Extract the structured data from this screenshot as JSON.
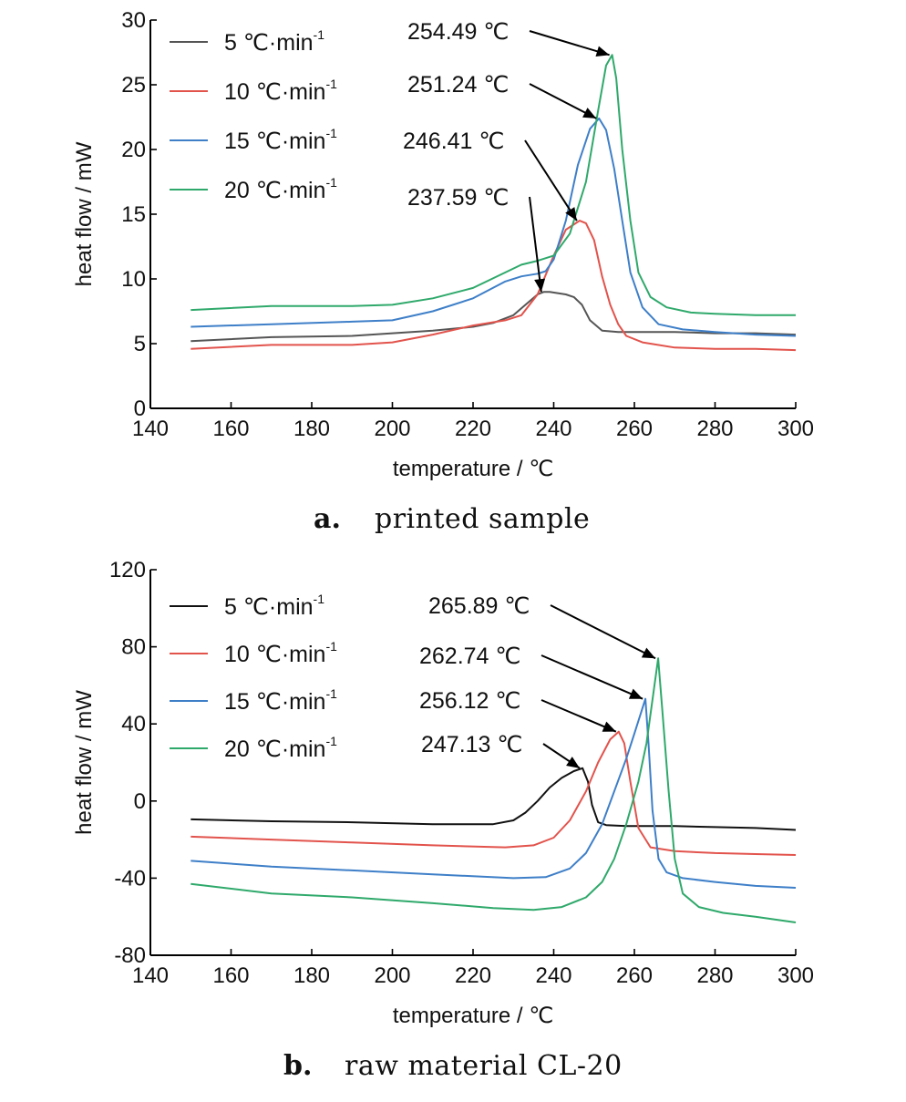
{
  "chart_data": [
    {
      "type": "line",
      "caption": {
        "letter": "a.",
        "text": "printed sample"
      },
      "xlabel": "temperature / ℃",
      "ylabel": "heat flow / mW",
      "xlim": [
        140,
        300
      ],
      "ylim": [
        0,
        30
      ],
      "xticks": [
        "140",
        "160",
        "180",
        "200",
        "220",
        "240",
        "260",
        "280",
        "300"
      ],
      "yticks": [
        "0",
        "5",
        "10",
        "15",
        "20",
        "25",
        "30"
      ],
      "legend_position": "top-left",
      "series": [
        {
          "name": "5 ℃·min",
          "superscript": "-1",
          "color": "#555555",
          "x": [
            150,
            170,
            190,
            200,
            210,
            220,
            225,
            230,
            233,
            236,
            237.59,
            239,
            241,
            243,
            245,
            247,
            249,
            252,
            256,
            260,
            270,
            280,
            290,
            300
          ],
          "y": [
            5.2,
            5.5,
            5.6,
            5.8,
            6.0,
            6.3,
            6.6,
            7.2,
            8.0,
            8.8,
            9.0,
            9.0,
            8.9,
            8.8,
            8.6,
            8.0,
            6.8,
            6.0,
            5.9,
            5.9,
            5.9,
            5.8,
            5.8,
            5.7
          ]
        },
        {
          "name": "10 ℃·min",
          "superscript": "-1",
          "color": "#e2534c",
          "x": [
            150,
            170,
            190,
            200,
            210,
            220,
            228,
            232,
            236,
            240,
            243,
            246.41,
            248,
            250,
            252,
            254,
            256,
            258,
            262,
            270,
            280,
            290,
            300
          ],
          "y": [
            4.6,
            4.9,
            4.9,
            5.1,
            5.7,
            6.4,
            6.8,
            7.2,
            8.8,
            11.8,
            13.8,
            14.5,
            14.3,
            13.0,
            10.2,
            8.0,
            6.5,
            5.6,
            5.1,
            4.7,
            4.6,
            4.6,
            4.5
          ]
        },
        {
          "name": "15 ℃·min",
          "superscript": "-1",
          "color": "#3e7fc8",
          "x": [
            150,
            170,
            190,
            200,
            210,
            220,
            228,
            232,
            236,
            238,
            240,
            243,
            246,
            249,
            251.24,
            253,
            255,
            257,
            259,
            262,
            266,
            272,
            280,
            290,
            300
          ],
          "y": [
            6.3,
            6.5,
            6.7,
            6.8,
            7.5,
            8.5,
            9.8,
            10.2,
            10.4,
            10.6,
            11.5,
            14.5,
            18.8,
            21.6,
            22.4,
            21.5,
            18.5,
            14.5,
            10.5,
            7.8,
            6.5,
            6.1,
            5.9,
            5.7,
            5.6
          ]
        },
        {
          "name": "20 ℃·min",
          "superscript": "-1",
          "color": "#2fa96b",
          "x": [
            150,
            170,
            190,
            200,
            210,
            220,
            228,
            232,
            236,
            240,
            244,
            248,
            251,
            253,
            254.49,
            255.5,
            257,
            259,
            261,
            264,
            268,
            274,
            280,
            290,
            300
          ],
          "y": [
            7.6,
            7.9,
            7.9,
            8.0,
            8.5,
            9.3,
            10.5,
            11.1,
            11.4,
            11.8,
            13.5,
            17.5,
            23.0,
            26.5,
            27.3,
            25.5,
            20.0,
            14.5,
            10.5,
            8.6,
            7.8,
            7.4,
            7.3,
            7.2,
            7.2
          ]
        }
      ],
      "annotations": [
        {
          "text": "254.49 ℃",
          "x": 254.49,
          "y": 27.3
        },
        {
          "text": "251.24 ℃",
          "x": 251.24,
          "y": 22.4
        },
        {
          "text": "246.41 ℃",
          "x": 246.41,
          "y": 14.5
        },
        {
          "text": "237.59 ℃",
          "x": 237.59,
          "y": 9.0
        }
      ]
    },
    {
      "type": "line",
      "caption": {
        "letter": "b.",
        "text": "raw material CL-20"
      },
      "xlabel": "temperature / ℃",
      "ylabel": "heat flow / mW",
      "xlim": [
        140,
        300
      ],
      "ylim": [
        -80,
        120
      ],
      "xticks": [
        "140",
        "160",
        "180",
        "200",
        "220",
        "240",
        "260",
        "280",
        "300"
      ],
      "yticks": [
        "-80",
        "-40",
        "0",
        "40",
        "80",
        "120"
      ],
      "legend_position": "top-left",
      "series": [
        {
          "name": "5 ℃·min",
          "superscript": "-1",
          "color": "#111111",
          "x": [
            150,
            170,
            190,
            210,
            225,
            230,
            233,
            236,
            239,
            242,
            245,
            247.13,
            248.5,
            249.5,
            251,
            253,
            258,
            270,
            280,
            290,
            300
          ],
          "y": [
            -9.5,
            -10.5,
            -11,
            -12,
            -12,
            -10,
            -6,
            0,
            7,
            12,
            15.5,
            17,
            10,
            -2,
            -11,
            -12.5,
            -13,
            -13,
            -13.5,
            -14,
            -15
          ]
        },
        {
          "name": "10 ℃·min",
          "superscript": "-1",
          "color": "#e2534c",
          "x": [
            150,
            170,
            190,
            210,
            228,
            235,
            240,
            244,
            248,
            251,
            254,
            256.12,
            257.5,
            259,
            261,
            264,
            270,
            280,
            290,
            300
          ],
          "y": [
            -18.5,
            -20,
            -21.5,
            -23,
            -24,
            -23,
            -19,
            -10,
            5,
            20,
            32,
            36,
            30,
            10,
            -14,
            -24,
            -26,
            -27,
            -27.5,
            -28
          ]
        },
        {
          "name": "15 ℃·min",
          "superscript": "-1",
          "color": "#3e7fc8",
          "x": [
            150,
            170,
            190,
            210,
            230,
            238,
            244,
            248,
            252,
            255,
            258,
            260,
            262.74,
            263.5,
            264.5,
            266,
            268,
            272,
            280,
            290,
            300
          ],
          "y": [
            -31,
            -34,
            -36,
            -38,
            -40,
            -39.5,
            -35,
            -27,
            -12,
            5,
            22,
            35,
            53,
            30,
            -5,
            -30,
            -37,
            -40,
            -42,
            -44,
            -45
          ]
        },
        {
          "name": "20 ℃·min",
          "superscript": "-1",
          "color": "#2fa96b",
          "x": [
            150,
            170,
            190,
            210,
            225,
            235,
            242,
            248,
            252,
            255,
            258,
            261,
            263,
            265.89,
            267,
            268.5,
            270,
            272,
            276,
            282,
            290,
            300
          ],
          "y": [
            -43,
            -48,
            -50,
            -53,
            -55.5,
            -56.5,
            -55,
            -50,
            -42,
            -30,
            -12,
            10,
            30,
            74,
            45,
            5,
            -30,
            -48,
            -55,
            -58,
            -60,
            -63
          ]
        }
      ],
      "annotations": [
        {
          "text": "265.89 ℃",
          "x": 265.89,
          "y": 74
        },
        {
          "text": "262.74 ℃",
          "x": 262.74,
          "y": 53
        },
        {
          "text": "256.12 ℃",
          "x": 256.12,
          "y": 36
        },
        {
          "text": "247.13 ℃",
          "x": 247.13,
          "y": 17
        }
      ]
    }
  ]
}
